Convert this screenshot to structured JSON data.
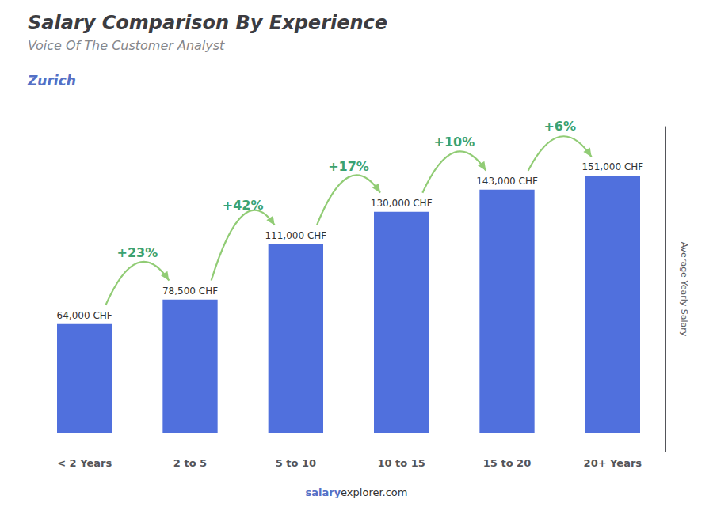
{
  "chart_data": {
    "type": "bar",
    "title": "Salary Comparison By Experience",
    "subtitle": "Voice Of The Customer Analyst",
    "caption": "Zurich",
    "categories": [
      "< 2 Years",
      "2 to 5",
      "5 to 10",
      "10 to 15",
      "15 to 20",
      "20+ Years"
    ],
    "values": [
      64000,
      78500,
      111000,
      130000,
      143000,
      151000
    ],
    "value_labels": [
      "64,000 CHF",
      "78,500 CHF",
      "111,000 CHF",
      "130,000 CHF",
      "143,000 CHF",
      "151,000 CHF"
    ],
    "data_labels": true,
    "annotations": [
      "+23%",
      "+42%",
      "+17%",
      "+10%",
      "+6%"
    ],
    "ylabel": "Average Yearly Salary",
    "ylim": [
      -10800,
      180000
    ],
    "grid": false,
    "tick_labels": "x",
    "source": [
      "salary",
      "explorer.com"
    ]
  }
}
